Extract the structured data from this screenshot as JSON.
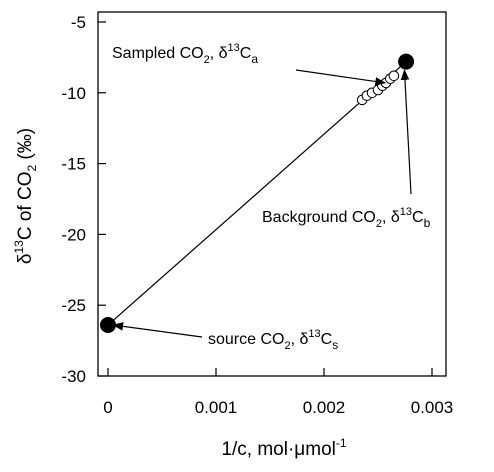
{
  "chart_data": {
    "type": "scatter",
    "xlabel": {
      "main": "1/c, mol·μmol",
      "sup": "-1"
    },
    "ylabel": {
      "pre": "δ",
      "sup1": "13",
      "mid": "C of CO",
      "sub": "2",
      "post": " (‰)"
    },
    "xlim": [
      0,
      0.003
    ],
    "ylim": [
      -30,
      -5
    ],
    "xticks": [
      0,
      0.001,
      0.002,
      0.003
    ],
    "xtick_labels": [
      "0",
      "0.001",
      "0.002",
      "0.003"
    ],
    "yticks": [
      -5,
      -10,
      -15,
      -20,
      -25,
      -30
    ],
    "ytick_labels": [
      "-5",
      "-10",
      "-15",
      "-20",
      "-25",
      "-30"
    ],
    "grid": false,
    "regression_line": {
      "x": [
        0,
        0.00276
      ],
      "y": [
        -26.4,
        -7.8
      ]
    },
    "series": [
      {
        "marker": "open-circle",
        "x": [
          0.002353,
          0.002397,
          0.002445,
          0.0025,
          0.002541,
          0.002574,
          0.002614,
          0.002647
        ],
        "y": [
          -10.5,
          -10.2,
          -10.0,
          -9.8,
          -9.5,
          -9.3,
          -9.0,
          -8.8
        ]
      },
      {
        "marker": "filled-circle",
        "x": [
          0.00276
        ],
        "y": [
          -7.8
        ]
      },
      {
        "marker": "filled-circle",
        "x": [
          0.0
        ],
        "y": [
          -26.4
        ]
      }
    ],
    "annotations": [
      {
        "id": "sampled",
        "text": "Sampled CO",
        "sub": "2",
        "mid": ", δ",
        "sup": "13",
        "tail": "C",
        "tailsub": "a",
        "arrow_to": {
          "x": 0.002565,
          "y": -9.3
        }
      },
      {
        "id": "background",
        "text": "Background CO",
        "sub": "2",
        "mid": ", δ",
        "sup": "13",
        "tail": "C",
        "tailsub": "b",
        "arrow_to": {
          "x": 0.002745,
          "y": -8.4
        }
      },
      {
        "id": "source",
        "text": "source CO",
        "sub": "2",
        "mid": ", δ",
        "sup": "13",
        "tail": "C",
        "tailsub": "s",
        "arrow_to": {
          "x": 5e-05,
          "y": -26.4
        }
      }
    ]
  }
}
